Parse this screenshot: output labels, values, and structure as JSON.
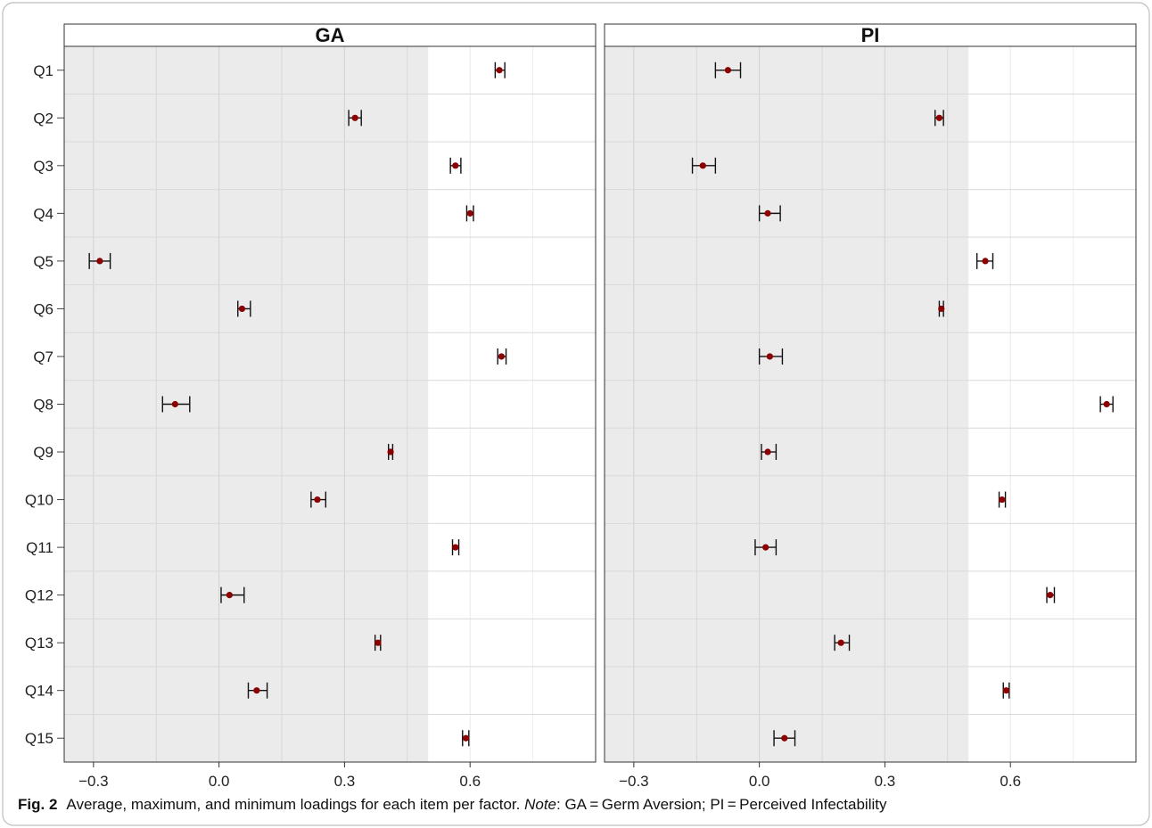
{
  "chart_data": {
    "type": "scatter",
    "items": [
      "Q1",
      "Q2",
      "Q3",
      "Q4",
      "Q5",
      "Q6",
      "Q7",
      "Q8",
      "Q9",
      "Q10",
      "Q11",
      "Q12",
      "Q13",
      "Q14",
      "Q15"
    ],
    "xlim": [
      -0.37,
      0.9
    ],
    "x_ticks": [
      -0.3,
      0.0,
      0.3,
      0.6
    ],
    "x_tick_labels": [
      "−0.3",
      "0.0",
      "0.3",
      "0.6"
    ],
    "shade_threshold": 0.5,
    "grid": true,
    "colors": {
      "point": "#8b0000",
      "shade": "#ebebeb",
      "grid_shaded": "#d3d3d3",
      "grid_plain": "#ececec",
      "whisker": "#111111"
    },
    "panels": [
      {
        "title": "GA",
        "mean": [
          0.67,
          0.325,
          0.565,
          0.6,
          -0.285,
          0.055,
          0.675,
          -0.105,
          0.41,
          0.235,
          0.565,
          0.025,
          0.38,
          0.09,
          0.59
        ],
        "min": [
          0.66,
          0.31,
          0.553,
          0.592,
          -0.31,
          0.045,
          0.666,
          -0.135,
          0.405,
          0.22,
          0.558,
          0.005,
          0.373,
          0.07,
          0.582
        ],
        "max": [
          0.683,
          0.34,
          0.578,
          0.608,
          -0.26,
          0.075,
          0.686,
          -0.07,
          0.415,
          0.255,
          0.573,
          0.06,
          0.386,
          0.115,
          0.597
        ]
      },
      {
        "title": "PI",
        "mean": [
          -0.075,
          0.43,
          -0.135,
          0.02,
          0.54,
          0.435,
          0.025,
          0.83,
          0.02,
          0.58,
          0.015,
          0.695,
          0.195,
          0.59,
          0.06
        ],
        "min": [
          -0.105,
          0.42,
          -0.16,
          0.0,
          0.52,
          0.43,
          0.0,
          0.815,
          0.005,
          0.573,
          -0.01,
          0.687,
          0.18,
          0.583,
          0.035
        ],
        "max": [
          -0.045,
          0.44,
          -0.105,
          0.05,
          0.558,
          0.44,
          0.055,
          0.845,
          0.04,
          0.588,
          0.04,
          0.705,
          0.215,
          0.597,
          0.085
        ]
      }
    ]
  },
  "caption": {
    "label": "Fig. 2",
    "text": "Average, maximum, and minimum loadings for each item per factor. ",
    "note_label": "Note",
    "note_text": ": GA = Germ Aversion; PI = Perceived Infectability"
  }
}
